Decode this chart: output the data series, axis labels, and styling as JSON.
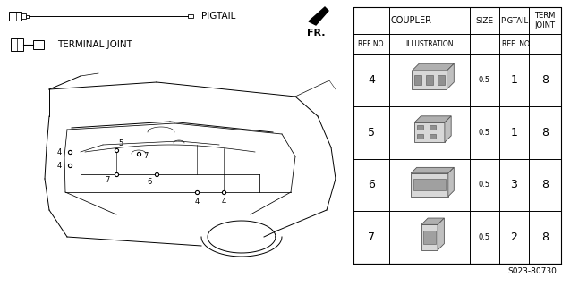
{
  "background_color": "#ffffff",
  "page_code": "S023-80730",
  "table": {
    "rows": [
      {
        "ref": "4",
        "size": "0.5",
        "pigtail": "1",
        "term": "8"
      },
      {
        "ref": "5",
        "size": "0.5",
        "pigtail": "1",
        "term": "8"
      },
      {
        "ref": "6",
        "size": "0.5",
        "pigtail": "3",
        "term": "8"
      },
      {
        "ref": "7",
        "size": "0.5",
        "pigtail": "2",
        "term": "8"
      }
    ]
  }
}
